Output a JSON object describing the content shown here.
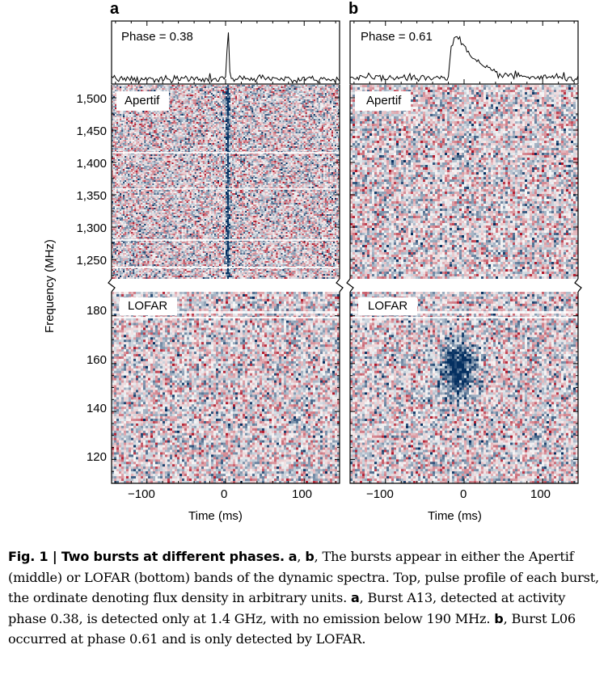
{
  "figure": {
    "panel_labels": [
      "a",
      "b"
    ],
    "phase_labels": [
      "Phase = 0.38",
      "Phase = 0.61"
    ],
    "band_labels": {
      "top": "Apertif",
      "bottom": "LOFAR"
    },
    "y_axis_label": "Frequency (MHz)",
    "x_axis_label": "Time (ms)",
    "y_ticks_apertif": [
      "1,500",
      "1,450",
      "1,400",
      "1,350",
      "1,300",
      "1,250"
    ],
    "y_ticks_lofar": [
      "180",
      "160",
      "140",
      "120"
    ],
    "x_ticks": [
      "−100",
      "0",
      "100"
    ]
  },
  "chart_data": [
    {
      "type": "heatmap",
      "panel": "a",
      "title": "Phase = 0.38",
      "xlabel": "Time (ms)",
      "ylabel": "Frequency (MHz)",
      "xlim": [
        -145,
        145
      ],
      "bands": [
        {
          "name": "Apertif",
          "ylim": [
            1220,
            1520
          ],
          "yticks": [
            1250,
            1300,
            1350,
            1400,
            1450,
            1500
          ],
          "burst": {
            "time_ms": 3,
            "freq_range": [
              1220,
              1510
            ],
            "extent_ms": 4
          }
        },
        {
          "name": "LOFAR",
          "ylim": [
            110,
            190
          ],
          "yticks": [
            120,
            140,
            160,
            180
          ],
          "burst": null
        }
      ],
      "pulse_profile": {
        "peak_time_ms": 3,
        "shape": "narrow spike"
      }
    },
    {
      "type": "heatmap",
      "panel": "b",
      "title": "Phase = 0.61",
      "xlabel": "Time (ms)",
      "ylabel": "Frequency (MHz)",
      "xlim": [
        -145,
        145
      ],
      "bands": [
        {
          "name": "Apertif",
          "ylim": [
            1220,
            1520
          ],
          "yticks": [
            1250,
            1300,
            1350,
            1400,
            1450,
            1500
          ],
          "burst": null
        },
        {
          "name": "LOFAR",
          "ylim": [
            110,
            190
          ],
          "yticks": [
            120,
            140,
            160,
            180
          ],
          "burst": {
            "time_ms": -10,
            "freq_center": 158,
            "freq_range": [
              135,
              180
            ],
            "extent_ms": 50
          }
        }
      ],
      "pulse_profile": {
        "peak_time_ms": -5,
        "shape": "broad with scattering tail"
      }
    }
  ],
  "caption": {
    "lead": "Fig. 1 | Two bursts at different phases.",
    "a": "a",
    "b": "b",
    "s1": ", ",
    "s2": ", The bursts appear in either the Apertif (middle) or LOFAR (bottom) bands of the dynamic spectra. Top, pulse profile of each burst, the ordinate denoting flux density in arbitrary units.",
    "s3": ", Burst A13, detected at activity phase 0.38, is detected only at 1.4 GHz, with no emission below 190 MHz.",
    "s4": ", Burst L06 occurred at phase 0.61 and is only detected by LOFAR."
  }
}
